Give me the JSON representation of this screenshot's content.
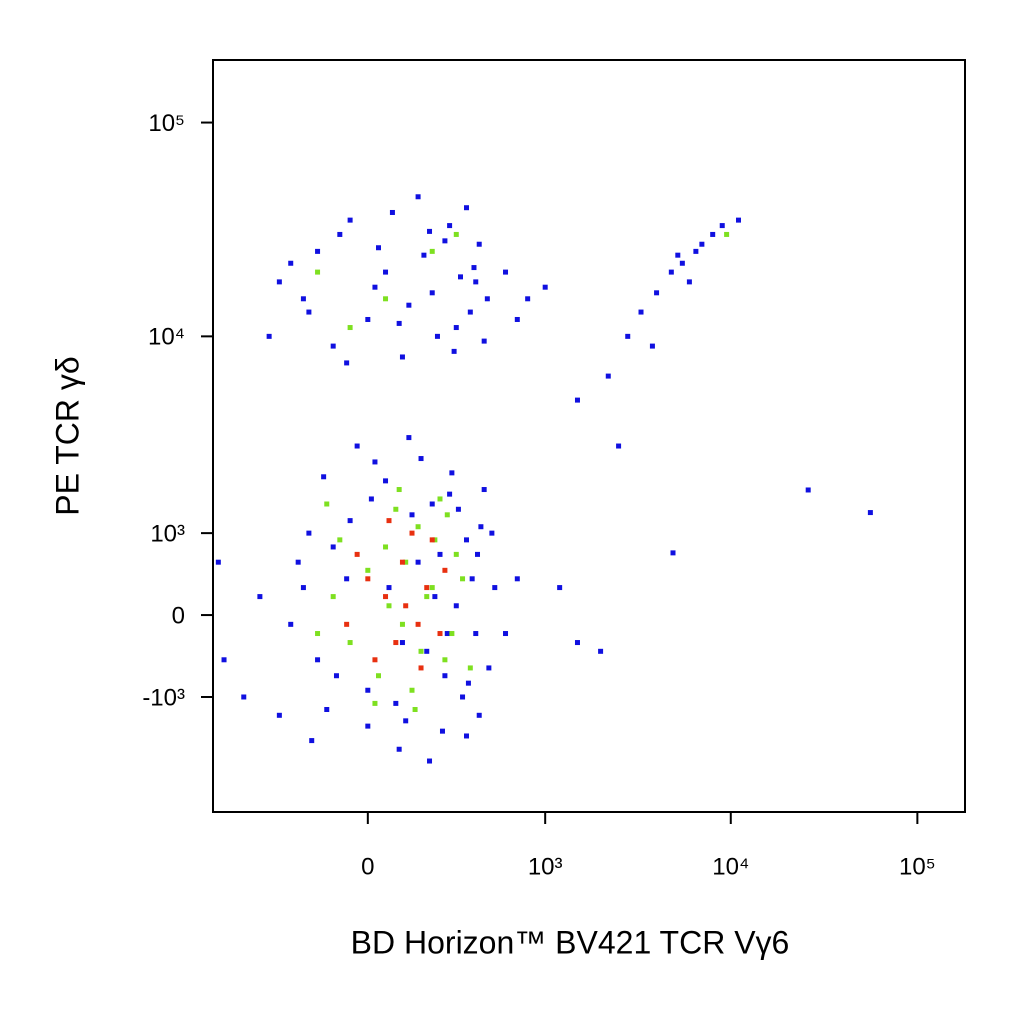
{
  "chart_data": {
    "type": "scatter",
    "x_label": "BD Horizon™ BV421 TCR Vγ6",
    "y_label": "PE  TCR γδ",
    "xscale": "biexponential",
    "yscale": "biexponential",
    "xlim": [
      -750,
      180000
    ],
    "ylim": [
      -4100,
      196000
    ],
    "xticks": [
      0,
      {
        "value": 1000,
        "label": "10³"
      },
      {
        "value": 10000,
        "label": "10⁴"
      },
      {
        "value": 100000,
        "label": "10⁵"
      }
    ],
    "yticks": [
      {
        "value": -1000,
        "label": "-10³"
      },
      0,
      {
        "value": 1000,
        "label": "10³"
      },
      {
        "value": 10000,
        "label": "10⁴"
      },
      {
        "value": 100000,
        "label": "10⁵"
      }
    ],
    "series": [
      {
        "color": "#1010e0",
        "x": [
          -200,
          -150,
          -100,
          -50,
          0,
          50,
          100,
          150,
          200,
          250,
          300,
          350,
          400,
          450,
          -250,
          -180,
          -120,
          -60,
          20,
          80,
          130,
          180,
          230,
          280,
          330,
          380,
          430,
          480,
          -220,
          -90,
          10,
          60,
          110,
          160,
          210,
          260,
          310,
          360,
          410,
          -300,
          -400,
          -30,
          120,
          240,
          500,
          600,
          700,
          1500,
          2000,
          1200,
          -500,
          -170,
          90,
          190,
          350,
          -130,
          0,
          270,
          420,
          520,
          -200,
          -150,
          -100,
          -50,
          0,
          50,
          100,
          150,
          200,
          250,
          300,
          350,
          400,
          450,
          -250,
          -180,
          -80,
          20,
          70,
          120,
          170,
          220,
          270,
          320,
          370,
          420,
          470,
          -300,
          -60,
          30,
          90,
          190,
          290,
          390,
          600,
          800,
          1000,
          700,
          -350,
          2200,
          2800,
          3300,
          4000,
          4800,
          5500,
          6500,
          7000,
          8000,
          9000,
          6000,
          3800,
          5200,
          11000,
          1500,
          2500,
          26000,
          56000,
          4900,
          -700,
          -650
        ],
        "values": [
          300,
          -500,
          800,
          1200,
          -900,
          2000,
          -300,
          600,
          1500,
          -700,
          100,
          900,
          -200,
          1800,
          -100,
          1000,
          -1200,
          400,
          2500,
          -1100,
          1300,
          -400,
          700,
          2200,
          -1000,
          400,
          1100,
          -600,
          600,
          -700,
          1600,
          300,
          -1400,
          2600,
          200,
          -200,
          1400,
          -800,
          700,
          -1300,
          200,
          3000,
          3300,
          -1600,
          1000,
          -200,
          400,
          -300,
          -400,
          300,
          -1000,
          -1800,
          -2000,
          -2300,
          -1700,
          2100,
          -1500,
          1700,
          -1300,
          300,
          15000,
          25000,
          9000,
          35000,
          12000,
          20000,
          8000,
          45000,
          16000,
          28000,
          11000,
          40000,
          18000,
          9500,
          22000,
          13000,
          30000,
          17000,
          38000,
          14000,
          24000,
          10000,
          33000,
          19000,
          13000,
          27000,
          15000,
          18000,
          7500,
          26000,
          11500,
          31000,
          8500,
          21000,
          20000,
          15000,
          17000,
          12000,
          10000,
          6500,
          10000,
          13000,
          16000,
          20000,
          22000,
          25000,
          27000,
          30000,
          33000,
          18000,
          9000,
          24000,
          35000,
          5000,
          3000,
          1790,
          1340,
          720,
          600,
          -500
        ]
      },
      {
        "color": "#7ee020",
        "x": [
          -100,
          -50,
          0,
          50,
          100,
          150,
          200,
          250,
          300,
          -80,
          30,
          80,
          130,
          180,
          230,
          280,
          330,
          -150,
          60,
          110,
          160,
          210,
          260,
          20,
          -120,
          370,
          90,
          140,
          -150,
          50,
          200,
          -50,
          300,
          9500
        ],
        "values": [
          200,
          -300,
          500,
          800,
          -100,
          1100,
          300,
          -500,
          700,
          900,
          -700,
          1400,
          -900,
          200,
          1600,
          -200,
          400,
          -200,
          100,
          600,
          -400,
          900,
          1300,
          -1100,
          1500,
          -600,
          1800,
          -1200,
          20000,
          15000,
          25000,
          11000,
          30000,
          30000
        ]
      },
      {
        "color": "#e83010",
        "x": [
          0,
          50,
          100,
          150,
          200,
          -30,
          80,
          130,
          180,
          230,
          60,
          110,
          160,
          -60,
          20,
          250
        ],
        "values": [
          400,
          200,
          600,
          -100,
          900,
          700,
          -300,
          1000,
          300,
          -200,
          1200,
          100,
          -600,
          -100,
          -500,
          500
        ]
      }
    ]
  }
}
